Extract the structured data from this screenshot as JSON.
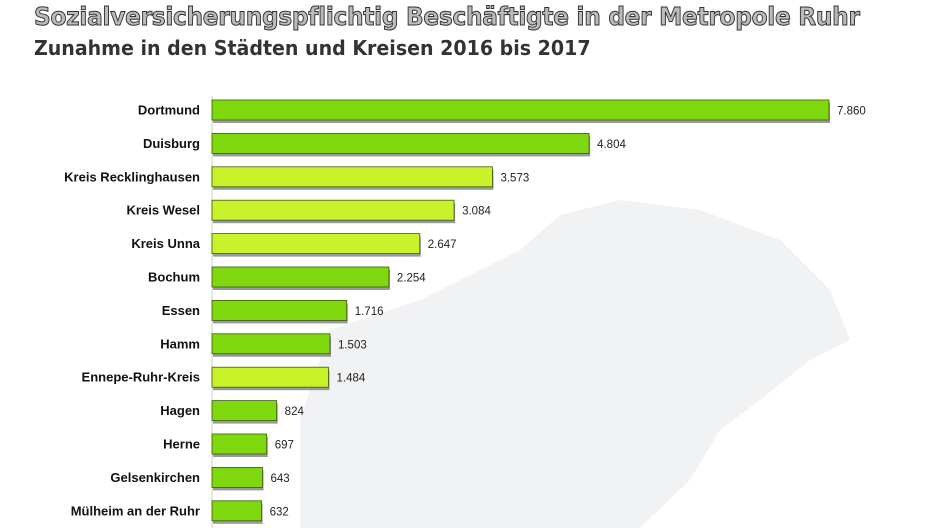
{
  "chart_data": {
    "type": "bar",
    "orientation": "horizontal",
    "title": "Sozialversicherungspflichtig Beschäftigte in der Metropole Ruhr",
    "subtitle": "Zunahme in den Städten und Kreisen 2016 bis 2017",
    "categories": [
      "Dortmund",
      "Duisburg",
      "Kreis Recklinghausen",
      "Kreis Wesel",
      "Kreis Unna",
      "Bochum",
      "Essen",
      "Hamm",
      "Ennepe-Ruhr-Kreis",
      "Hagen",
      "Herne",
      "Gelsenkirchen",
      "Mülheim an der Ruhr"
    ],
    "values": [
      7860,
      4804,
      3573,
      3084,
      2647,
      2254,
      1716,
      1503,
      1484,
      824,
      697,
      643,
      632
    ],
    "value_labels": [
      "7.860",
      "4.804",
      "3.573",
      "3.084",
      "2.647",
      "2.254",
      "1.716",
      "1.503",
      "1.484",
      "824",
      "697",
      "643",
      "632"
    ],
    "bar_types": [
      "city",
      "city",
      "district",
      "district",
      "district",
      "city",
      "city",
      "city",
      "district",
      "city",
      "city",
      "city",
      "city"
    ],
    "colors": {
      "city": "#7fd80e",
      "district": "#c9f22a",
      "background_map": "#f0f1f3"
    },
    "xlim": [
      0,
      7860
    ],
    "grid": false,
    "legend": "none"
  }
}
